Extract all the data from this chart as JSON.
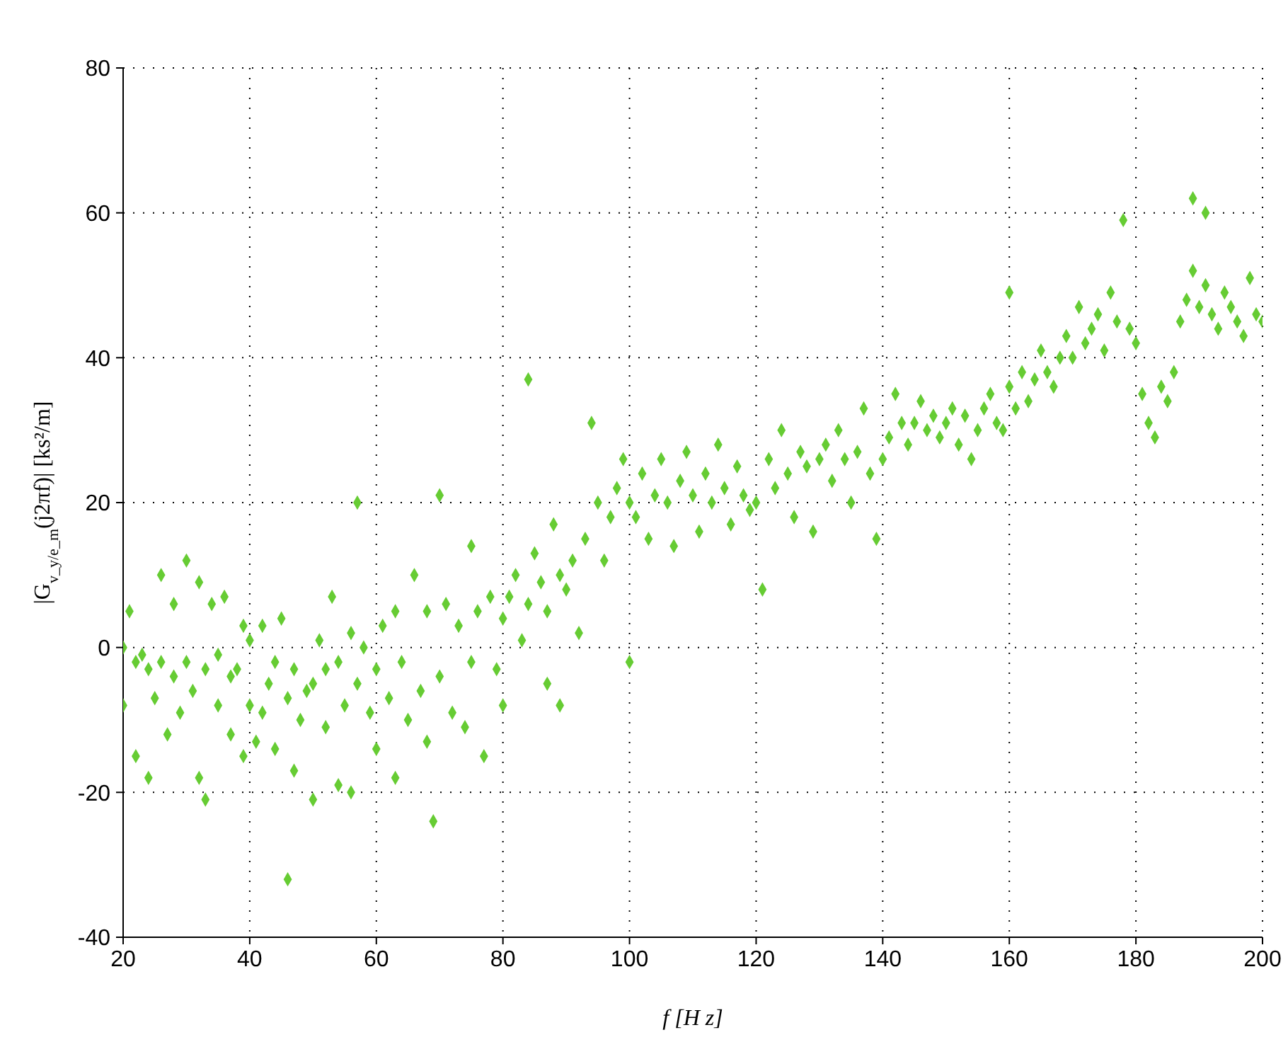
{
  "chart_data": {
    "type": "scatter",
    "xlabel": "f [H z]",
    "ylabel": "|G$_{v_y/e_m}$(j2πf)| [ks²/m]",
    "xlim": [
      20,
      200
    ],
    "ylim": [
      -40,
      80
    ],
    "xticks": [
      20,
      40,
      60,
      80,
      100,
      120,
      140,
      160,
      180,
      200
    ],
    "yticks": [
      -40,
      -20,
      0,
      20,
      40,
      60,
      80
    ],
    "grid": true,
    "marker": "diamond",
    "legend": false,
    "series": [
      {
        "color": "#66cc33",
        "x": [
          20,
          20,
          21,
          22,
          22,
          23,
          24,
          24,
          25,
          26,
          26,
          27,
          28,
          28,
          29,
          30,
          30,
          31,
          32,
          32,
          33,
          33,
          34,
          35,
          35,
          36,
          37,
          37,
          38,
          39,
          39,
          40,
          40,
          41,
          42,
          42,
          43,
          44,
          44,
          45,
          46,
          46,
          47,
          47,
          48,
          49,
          50,
          50,
          51,
          52,
          52,
          53,
          54,
          54,
          55,
          56,
          56,
          57,
          57,
          58,
          59,
          60,
          60,
          61,
          62,
          63,
          63,
          64,
          65,
          66,
          67,
          68,
          68,
          69,
          70,
          70,
          71,
          72,
          73,
          74,
          75,
          75,
          76,
          77,
          78,
          79,
          80,
          80,
          81,
          82,
          83,
          84,
          84,
          85,
          86,
          87,
          87,
          88,
          89,
          89,
          90,
          91,
          92,
          93,
          94,
          95,
          96,
          97,
          98,
          99,
          100,
          100,
          101,
          102,
          103,
          104,
          105,
          106,
          107,
          108,
          109,
          110,
          111,
          112,
          113,
          114,
          115,
          116,
          117,
          118,
          119,
          120,
          121,
          122,
          123,
          124,
          125,
          126,
          127,
          128,
          129,
          130,
          131,
          132,
          133,
          134,
          135,
          136,
          137,
          138,
          139,
          140,
          141,
          142,
          143,
          144,
          145,
          146,
          147,
          148,
          149,
          150,
          151,
          152,
          153,
          154,
          155,
          156,
          157,
          158,
          159,
          160,
          160,
          161,
          162,
          163,
          164,
          165,
          166,
          167,
          168,
          169,
          170,
          171,
          172,
          173,
          174,
          175,
          176,
          177,
          178,
          179,
          180,
          181,
          182,
          183,
          184,
          185,
          186,
          187,
          188,
          189,
          189,
          190,
          191,
          191,
          192,
          193,
          194,
          195,
          196,
          197,
          198,
          199,
          200
        ],
        "values": [
          0,
          -8,
          5,
          -2,
          -15,
          -1,
          -3,
          -18,
          -7,
          10,
          -2,
          -12,
          -4,
          6,
          -9,
          12,
          -2,
          -6,
          9,
          -18,
          -3,
          -21,
          6,
          -1,
          -8,
          7,
          -4,
          -12,
          -3,
          3,
          -15,
          1,
          -8,
          -13,
          3,
          -9,
          -5,
          -2,
          -14,
          4,
          -7,
          -32,
          -3,
          -17,
          -10,
          -6,
          -21,
          -5,
          1,
          -3,
          -11,
          7,
          -2,
          -19,
          -8,
          2,
          -20,
          20,
          -5,
          0,
          -9,
          -3,
          -14,
          3,
          -7,
          5,
          -18,
          -2,
          -10,
          10,
          -6,
          5,
          -13,
          -24,
          21,
          -4,
          6,
          -9,
          3,
          -11,
          14,
          -2,
          5,
          -15,
          7,
          -3,
          4,
          -8,
          7,
          10,
          1,
          37,
          6,
          13,
          9,
          5,
          -5,
          17,
          10,
          -8,
          8,
          12,
          2,
          15,
          31,
          20,
          12,
          18,
          22,
          26,
          20,
          -2,
          18,
          24,
          15,
          21,
          26,
          20,
          14,
          23,
          27,
          21,
          16,
          24,
          20,
          28,
          22,
          17,
          25,
          21,
          19,
          20,
          8,
          26,
          22,
          30,
          24,
          18,
          27,
          25,
          16,
          26,
          28,
          23,
          30,
          26,
          20,
          27,
          33,
          24,
          15,
          26,
          29,
          35,
          31,
          28,
          31,
          34,
          30,
          32,
          29,
          31,
          33,
          28,
          32,
          26,
          30,
          33,
          35,
          31,
          30,
          36,
          49,
          33,
          38,
          34,
          37,
          41,
          38,
          36,
          40,
          43,
          40,
          47,
          42,
          44,
          46,
          41,
          49,
          45,
          59,
          44,
          42,
          35,
          31,
          29,
          36,
          34,
          38,
          45,
          48,
          62,
          52,
          47,
          60,
          50,
          46,
          44,
          49,
          47,
          45,
          43,
          51,
          46,
          45
        ]
      }
    ]
  }
}
